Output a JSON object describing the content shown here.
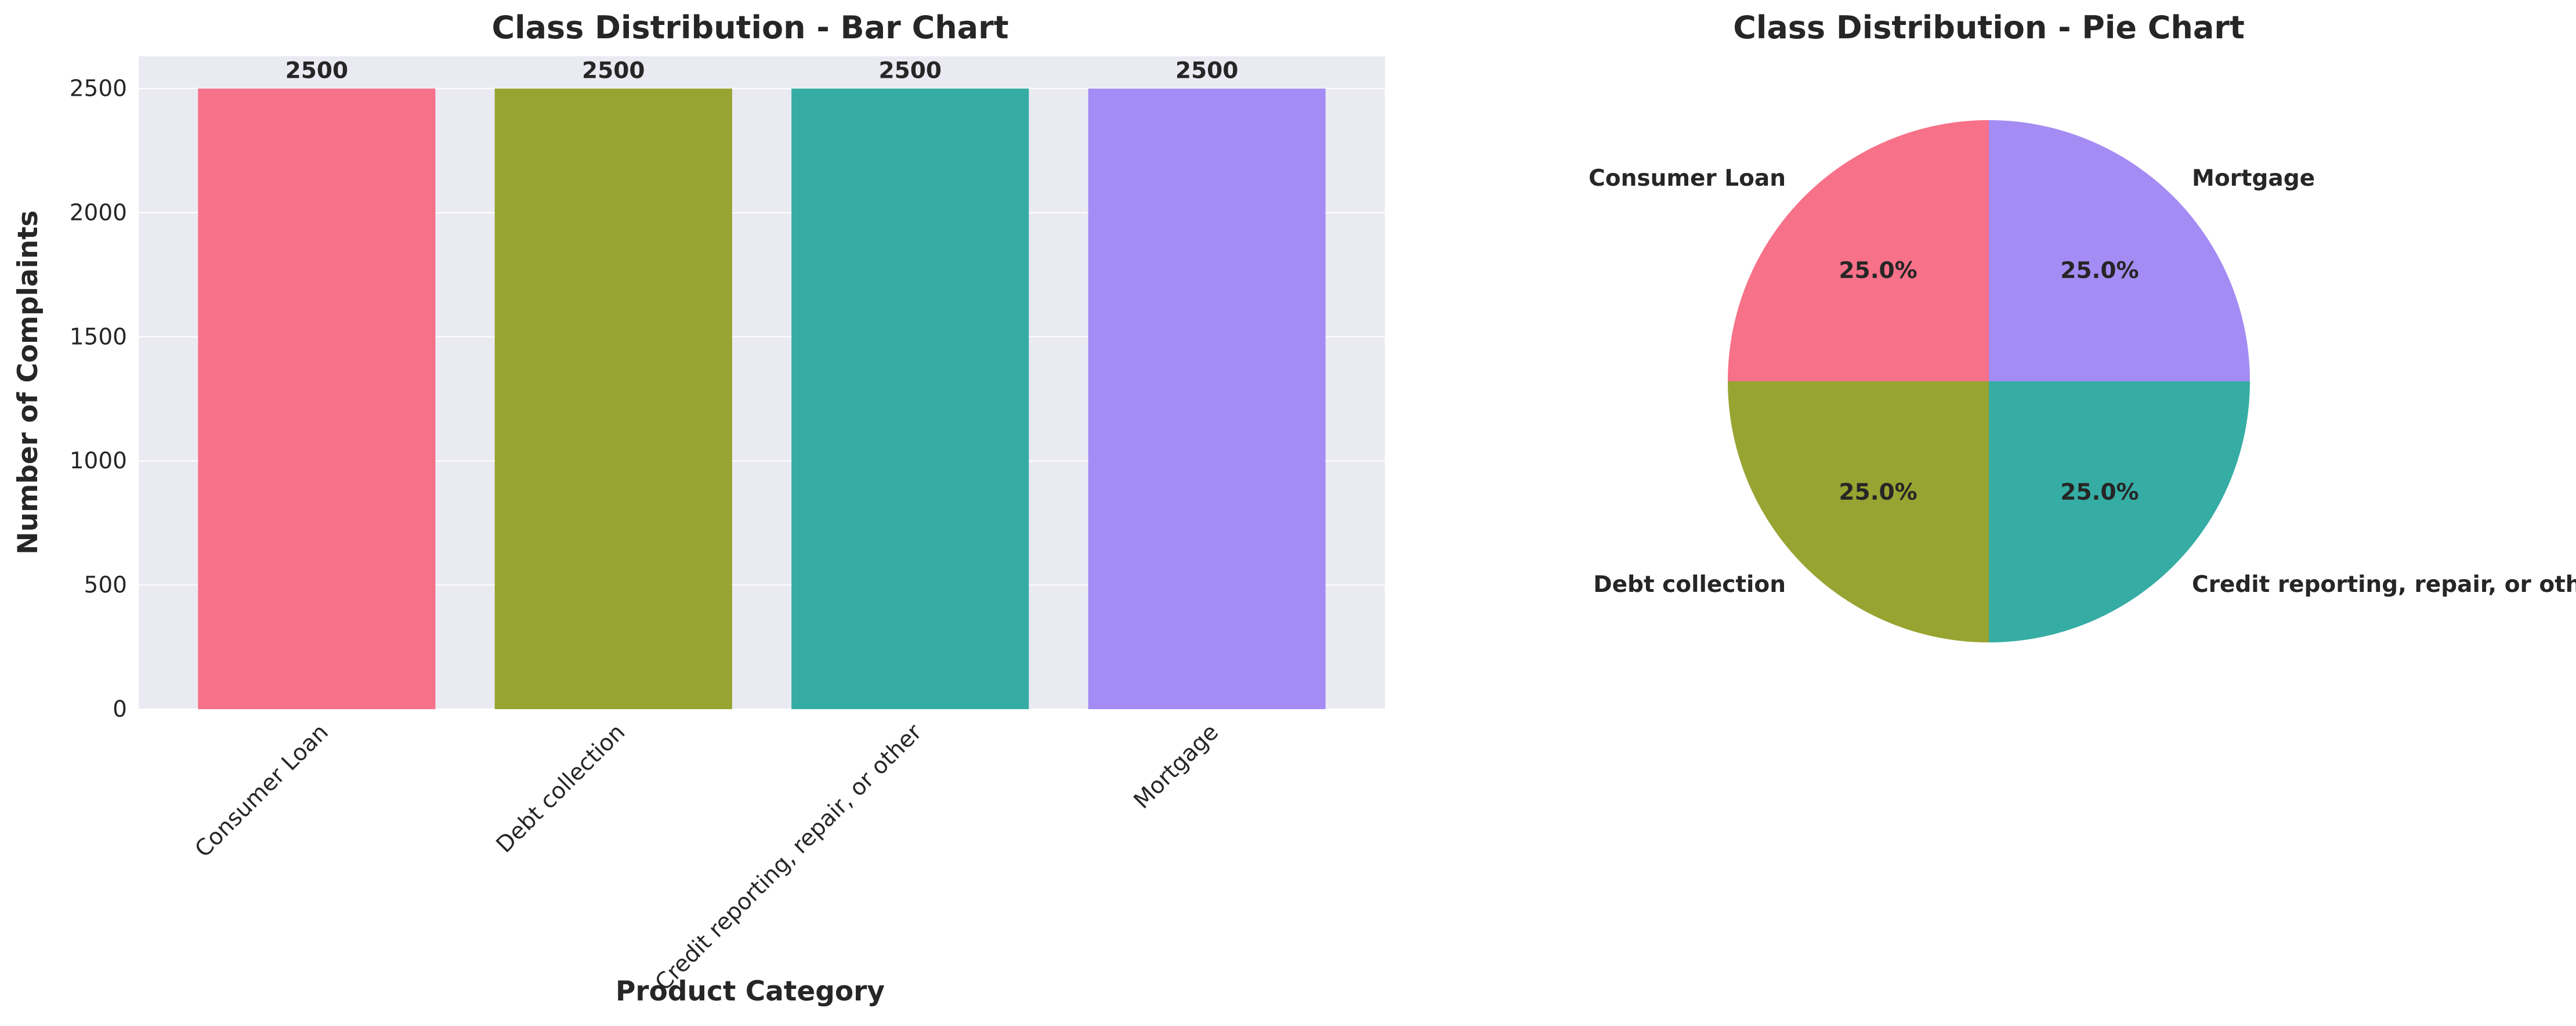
{
  "chart_data": [
    {
      "type": "bar",
      "title": "Class Distribution - Bar Chart",
      "xlabel": "Product Category",
      "ylabel": "Number of Complaints",
      "categories": [
        "Consumer Loan",
        "Debt collection",
        "Credit reporting, repair, or other",
        "Mortgage"
      ],
      "values": [
        2500,
        2500,
        2500,
        2500
      ],
      "value_labels": [
        "2500",
        "2500",
        "2500",
        "2500"
      ],
      "colors": [
        "#f77189",
        "#97a431",
        "#36ada4",
        "#a48cf4"
      ],
      "ylim": [
        0,
        2630
      ],
      "yticks": [
        0,
        500,
        1000,
        1500,
        2000,
        2500
      ],
      "ytick_labels": [
        "0",
        "500",
        "1000",
        "1500",
        "2000",
        "2500"
      ],
      "grid": true,
      "background": "#eaeaf2"
    },
    {
      "type": "pie",
      "title": "Class Distribution - Pie Chart",
      "labels": [
        "Consumer Loan",
        "Debt collection",
        "Credit reporting, repair, or other",
        "Mortgage"
      ],
      "values": [
        2500,
        2500,
        2500,
        2500
      ],
      "percent_labels": [
        "25.0%",
        "25.0%",
        "25.0%",
        "25.0%"
      ],
      "colors": [
        "#f77189",
        "#97a431",
        "#36ada4",
        "#a48cf4"
      ],
      "start_angle_deg": 90,
      "direction": "counterclockwise"
    }
  ]
}
